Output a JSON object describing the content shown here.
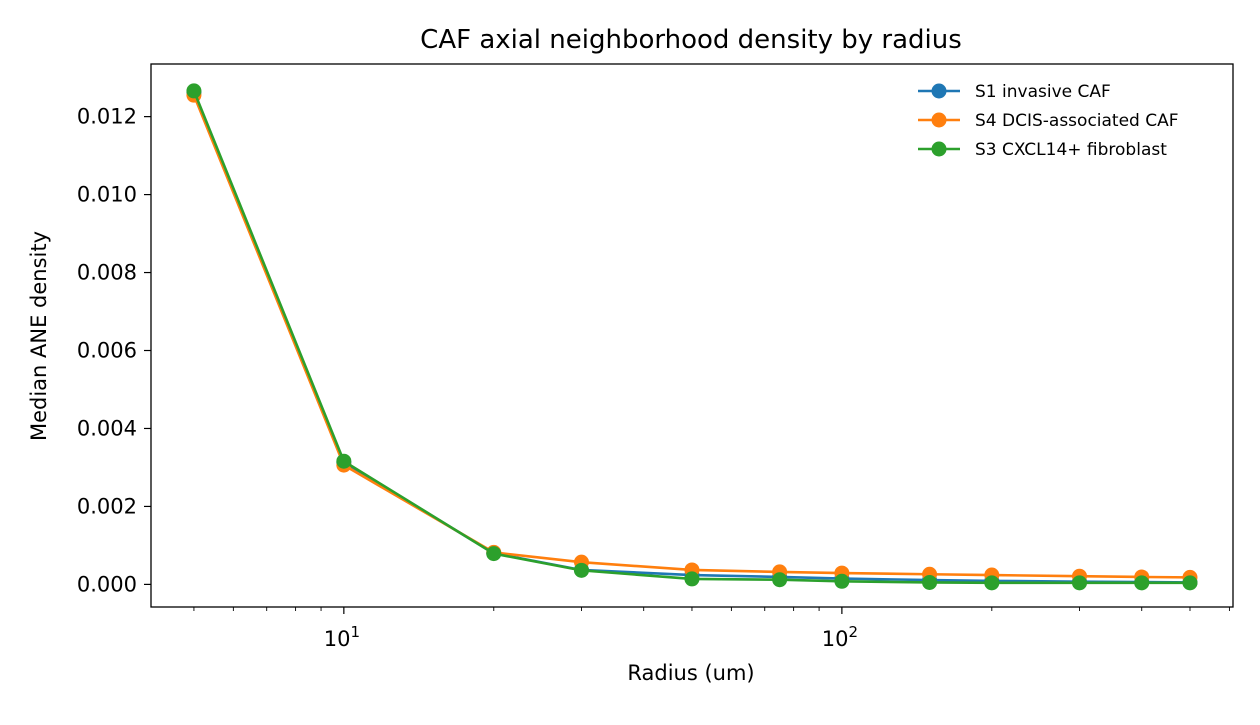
{
  "chart_data": {
    "type": "line",
    "title": "CAF axial neighborhood density by radius",
    "xlabel": "Radius (um)",
    "ylabel": "Median ANE density",
    "x_scale": "log",
    "xlim": [
      4.1,
      610
    ],
    "ylim": [
      -0.00058,
      0.01335
    ],
    "x_ticks": [
      {
        "value": 10,
        "base": "10",
        "exp": "1"
      },
      {
        "value": 100,
        "base": "10",
        "exp": "2"
      }
    ],
    "y_ticks": [
      {
        "value": 0.0,
        "label": "0.000"
      },
      {
        "value": 0.002,
        "label": "0.002"
      },
      {
        "value": 0.004,
        "label": "0.004"
      },
      {
        "value": 0.006,
        "label": "0.006"
      },
      {
        "value": 0.008,
        "label": "0.008"
      },
      {
        "value": 0.01,
        "label": "0.010"
      },
      {
        "value": 0.012,
        "label": "0.012"
      }
    ],
    "grid": false,
    "legend_position": "top-right",
    "x": [
      5,
      10,
      20,
      30,
      50,
      75,
      100,
      150,
      200,
      300,
      400,
      500
    ],
    "series": [
      {
        "name": "S1 invasive CAF",
        "color": "#1f77b4",
        "values": [
          0.01262,
          0.00312,
          0.0008,
          0.00037,
          0.00024,
          0.00019,
          0.00015,
          0.00011,
          9e-05,
          7e-05,
          6e-05,
          5e-05
        ]
      },
      {
        "name": "S4 DCIS-associated CAF",
        "color": "#ff7f0e",
        "values": [
          0.01255,
          0.00306,
          0.00082,
          0.00057,
          0.00037,
          0.00032,
          0.00029,
          0.00026,
          0.00024,
          0.00021,
          0.00019,
          0.00018
        ]
      },
      {
        "name": "S3 CXCL14+ fibroblast",
        "color": "#2ca02c",
        "values": [
          0.01266,
          0.00316,
          0.00079,
          0.00036,
          0.00014,
          0.00012,
          8e-05,
          5e-05,
          4e-05,
          4e-05,
          4e-05,
          4e-05
        ]
      }
    ]
  }
}
